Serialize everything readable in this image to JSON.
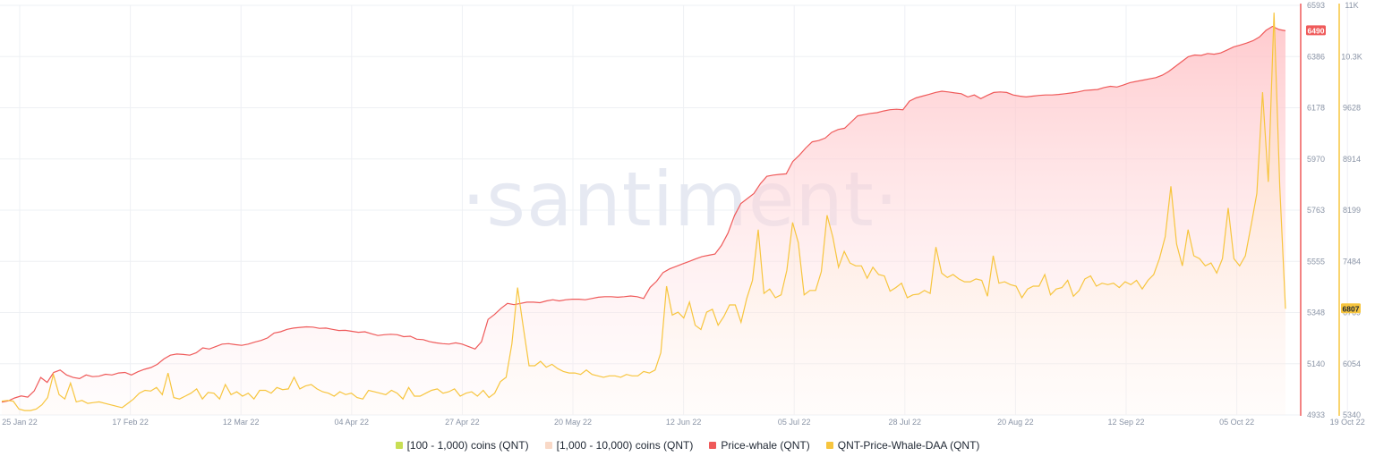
{
  "watermark": "·santiment·",
  "legend": [
    {
      "label": "[100 - 1,000) coins (QNT)",
      "color": "#c8de54"
    },
    {
      "label": "[1,000 - 10,000) coins (QNT)",
      "color": "#f9d9c7"
    },
    {
      "label": "Price-whale (QNT)",
      "color": "#ef5a5a"
    },
    {
      "label": "QNT-Price-Whale-DAA (QNT)",
      "color": "#f7c53e"
    }
  ],
  "colors": {
    "red": "#ef5a5a",
    "yellow": "#f7c53e",
    "grid": "#eef0f4"
  },
  "chart_data": {
    "type": "line",
    "x_ticks": [
      "25 Jan 22",
      "17 Feb 22",
      "12 Mar 22",
      "04 Apr 22",
      "27 Apr 22",
      "20 May 22",
      "12 Jun 22",
      "05 Jul 22",
      "28 Jul 22",
      "20 Aug 22",
      "12 Sep 22",
      "05 Oct 22",
      "19 Oct 22"
    ],
    "y_left": {
      "ticks": [
        "6593",
        "6386",
        "6178",
        "5970",
        "5763",
        "5555",
        "5348",
        "5140",
        "4933"
      ],
      "min": 4933,
      "max": 6593
    },
    "y_right": {
      "ticks": [
        "11K",
        "10.3K",
        "9628",
        "8914",
        "8199",
        "7484",
        "6769",
        "6054",
        "5340"
      ],
      "min": 5340,
      "max": 11000
    },
    "series": [
      {
        "name": "Price-whale (QNT)",
        "axis": "left",
        "last_label": "6490",
        "values": [
          4985,
          4990,
          5002,
          5010,
          5005,
          5030,
          5085,
          5065,
          5105,
          5115,
          5095,
          5085,
          5080,
          5095,
          5088,
          5090,
          5098,
          5095,
          5103,
          5105,
          5095,
          5108,
          5118,
          5125,
          5138,
          5160,
          5175,
          5180,
          5178,
          5175,
          5185,
          5205,
          5200,
          5210,
          5220,
          5222,
          5218,
          5215,
          5220,
          5228,
          5235,
          5245,
          5265,
          5270,
          5280,
          5285,
          5288,
          5290,
          5289,
          5284,
          5285,
          5280,
          5275,
          5276,
          5272,
          5268,
          5270,
          5262,
          5255,
          5258,
          5260,
          5258,
          5250,
          5252,
          5240,
          5238,
          5230,
          5225,
          5222,
          5220,
          5225,
          5220,
          5210,
          5200,
          5230,
          5320,
          5340,
          5365,
          5385,
          5380,
          5385,
          5390,
          5390,
          5388,
          5395,
          5400,
          5395,
          5400,
          5402,
          5402,
          5400,
          5405,
          5410,
          5412,
          5412,
          5410,
          5412,
          5415,
          5412,
          5405,
          5450,
          5475,
          5510,
          5525,
          5535,
          5545,
          5555,
          5565,
          5575,
          5580,
          5585,
          5620,
          5670,
          5740,
          5790,
          5810,
          5830,
          5870,
          5900,
          5905,
          5908,
          5910,
          5960,
          5985,
          6015,
          6040,
          6045,
          6055,
          6078,
          6090,
          6095,
          6120,
          6145,
          6150,
          6155,
          6158,
          6165,
          6170,
          6172,
          6170,
          6205,
          6218,
          6225,
          6232,
          6240,
          6245,
          6242,
          6238,
          6235,
          6222,
          6230,
          6215,
          6228,
          6240,
          6242,
          6240,
          6230,
          6225,
          6222,
          6225,
          6228,
          6230,
          6230,
          6232,
          6235,
          6238,
          6242,
          6248,
          6250,
          6252,
          6260,
          6265,
          6262,
          6270,
          6280,
          6285,
          6290,
          6295,
          6300,
          6310,
          6325,
          6345,
          6365,
          6385,
          6392,
          6390,
          6398,
          6395,
          6400,
          6412,
          6425,
          6432,
          6440,
          6450,
          6465,
          6492,
          6508,
          6495,
          6490
        ]
      },
      {
        "name": "QNT-Price-Whale-DAA (QNT)",
        "axis": "right",
        "last_label": "6807",
        "values": [
          5530,
          5540,
          5530,
          5420,
          5400,
          5400,
          5420,
          5480,
          5580,
          5900,
          5620,
          5560,
          5780,
          5520,
          5540,
          5500,
          5510,
          5520,
          5500,
          5480,
          5460,
          5440,
          5500,
          5560,
          5640,
          5680,
          5670,
          5720,
          5620,
          5920,
          5580,
          5560,
          5600,
          5640,
          5700,
          5560,
          5650,
          5640,
          5560,
          5760,
          5620,
          5660,
          5600,
          5640,
          5560,
          5680,
          5680,
          5640,
          5720,
          5690,
          5700,
          5860,
          5700,
          5740,
          5760,
          5700,
          5660,
          5640,
          5600,
          5660,
          5620,
          5640,
          5580,
          5560,
          5680,
          5660,
          5640,
          5620,
          5680,
          5640,
          5560,
          5720,
          5600,
          5600,
          5640,
          5680,
          5700,
          5640,
          5660,
          5700,
          5600,
          5640,
          5660,
          5600,
          5680,
          5580,
          5640,
          5800,
          5860,
          6320,
          7100,
          6550,
          6020,
          6020,
          6080,
          6000,
          6040,
          5980,
          5940,
          5920,
          5920,
          5900,
          5960,
          5900,
          5880,
          5860,
          5880,
          5880,
          5860,
          5900,
          5880,
          5880,
          5940,
          5920,
          5960,
          6200,
          7120,
          6720,
          6760,
          6680,
          6900,
          6580,
          6520,
          6760,
          6800,
          6580,
          6700,
          6860,
          6860,
          6620,
          6950,
          7200,
          7900,
          7020,
          7080,
          6960,
          7000,
          7340,
          8000,
          7720,
          7000,
          7060,
          7060,
          7320,
          8100,
          7800,
          7380,
          7600,
          7440,
          7400,
          7400,
          7230,
          7380,
          7280,
          7260,
          7050,
          7100,
          7160,
          6960,
          7000,
          7010,
          7060,
          7020,
          7660,
          7300,
          7240,
          7280,
          7220,
          7180,
          7180,
          7220,
          7200,
          6980,
          7540,
          7160,
          7180,
          7140,
          7120,
          6960,
          7080,
          7120,
          7120,
          7280,
          7000,
          7080,
          7100,
          7200,
          6980,
          7060,
          7220,
          7260,
          7120,
          7160,
          7140,
          7160,
          7100,
          7180,
          7140,
          7200,
          7080,
          7200,
          7280,
          7500,
          7800,
          8500,
          7700,
          7400,
          7900,
          7540,
          7500,
          7400,
          7440,
          7300,
          7500,
          8200,
          7500,
          7400,
          7540,
          7960,
          8400,
          9800,
          8560,
          10900,
          8500,
          6807
        ]
      }
    ]
  }
}
